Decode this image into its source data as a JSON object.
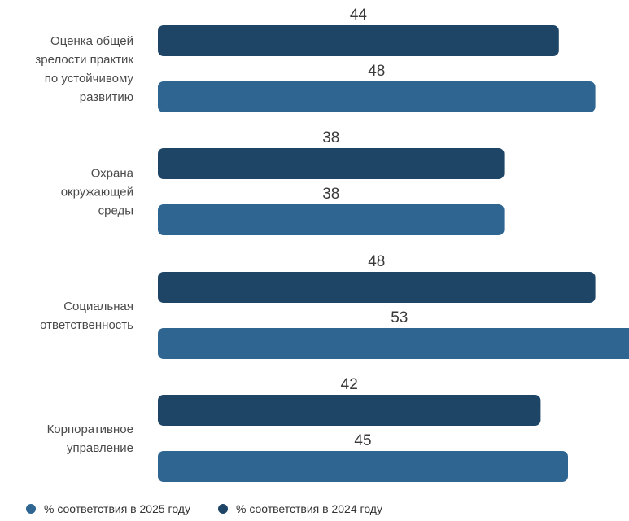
{
  "chart_data": {
    "type": "bar",
    "orientation": "horizontal",
    "categories": [
      [
        "Оценка общей",
        "зрелости практик",
        "по устойчивому",
        "развитию"
      ],
      [
        "Охрана",
        "окружающей",
        "среды"
      ],
      [
        "Социальная",
        "ответственность"
      ],
      [
        "Корпоративное",
        "управление"
      ]
    ],
    "series": [
      {
        "name": "% соответствия в 2024 году",
        "values": [
          44,
          38,
          48,
          42
        ],
        "color": "#1f4566"
      },
      {
        "name": "% соответствия в 2025 году",
        "values": [
          48,
          38,
          53,
          45
        ],
        "color": "#2e6591"
      }
    ],
    "legend_order": [
      1,
      0
    ],
    "legend_position": "bottom-left",
    "grid": false
  }
}
